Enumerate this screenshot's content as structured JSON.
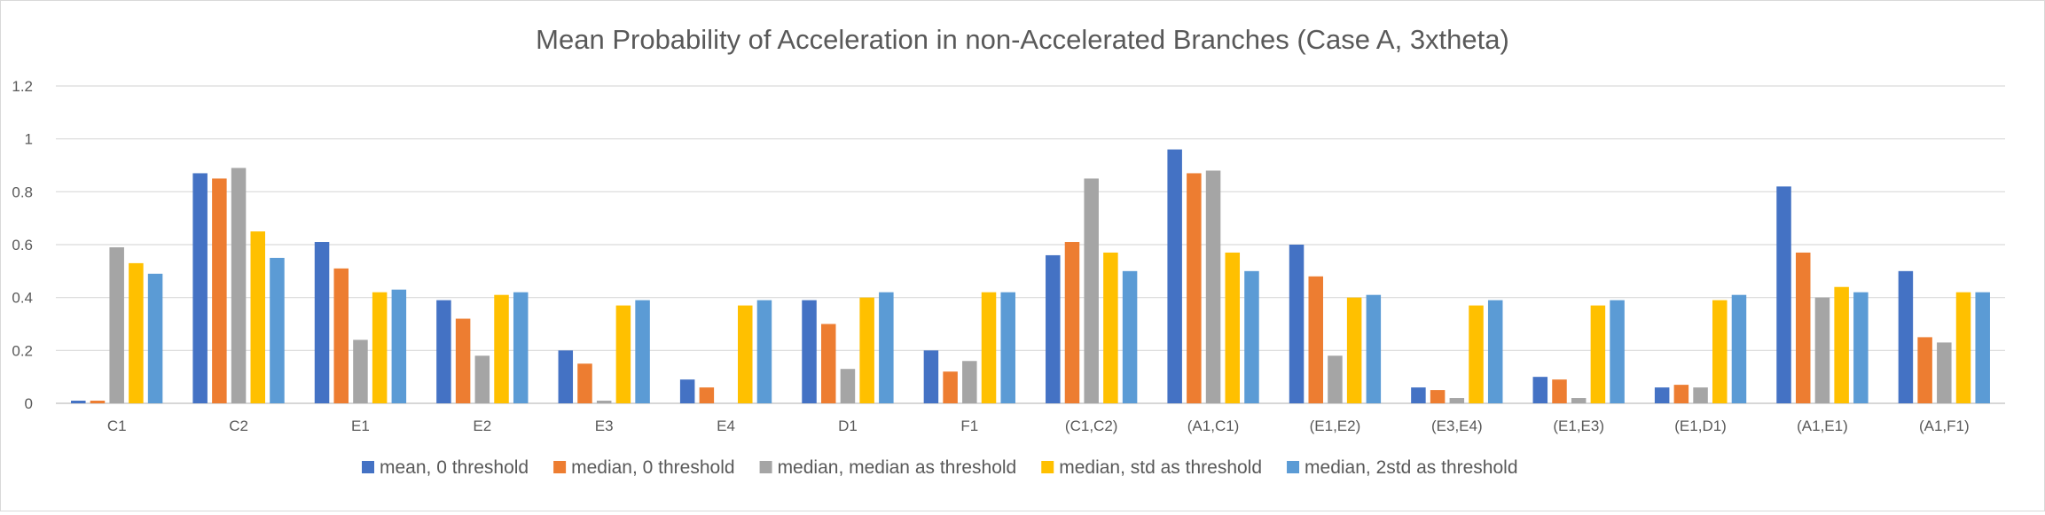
{
  "chart_data": {
    "type": "bar",
    "title": "Mean Probability of Acceleration in non-Accelerated Branches (Case A, 3xtheta)",
    "xlabel": "",
    "ylabel": "",
    "ylim": [
      0,
      1.2
    ],
    "yticks": [
      "0",
      "0.2",
      "0.4",
      "0.6",
      "0.8",
      "1",
      "1.2"
    ],
    "grid": true,
    "legend_position": "bottom",
    "categories": [
      "C1",
      "C2",
      "E1",
      "E2",
      "E3",
      "E4",
      "D1",
      "F1",
      "(C1,C2)",
      "(A1,C1)",
      "(E1,E2)",
      "(E3,E4)",
      "(E1,E3)",
      "(E1,D1)",
      "(A1,E1)",
      "(A1,F1)"
    ],
    "series": [
      {
        "name": "mean, 0 threshold",
        "color": "#4472C4",
        "values": [
          0.01,
          0.87,
          0.61,
          0.39,
          0.2,
          0.09,
          0.39,
          0.2,
          0.56,
          0.96,
          0.6,
          0.06,
          0.1,
          0.06,
          0.82,
          0.5
        ]
      },
      {
        "name": "median, 0 threshold",
        "color": "#ED7D31",
        "values": [
          0.01,
          0.85,
          0.51,
          0.32,
          0.15,
          0.06,
          0.3,
          0.12,
          0.61,
          0.87,
          0.48,
          0.05,
          0.09,
          0.07,
          0.57,
          0.25
        ]
      },
      {
        "name": "median, median as threshold",
        "color": "#A5A5A5",
        "values": [
          0.59,
          0.89,
          0.24,
          0.18,
          0.01,
          0.0,
          0.13,
          0.16,
          0.85,
          0.88,
          0.18,
          0.02,
          0.02,
          0.06,
          0.4,
          0.23
        ]
      },
      {
        "name": "median, std as threshold",
        "color": "#FFC000",
        "values": [
          0.53,
          0.65,
          0.42,
          0.41,
          0.37,
          0.37,
          0.4,
          0.42,
          0.57,
          0.57,
          0.4,
          0.37,
          0.37,
          0.39,
          0.44,
          0.42
        ]
      },
      {
        "name": "median, 2std as threshold",
        "color": "#5B9BD5",
        "values": [
          0.49,
          0.55,
          0.43,
          0.42,
          0.39,
          0.39,
          0.42,
          0.42,
          0.5,
          0.5,
          0.41,
          0.39,
          0.39,
          0.41,
          0.42,
          0.42
        ]
      }
    ]
  }
}
